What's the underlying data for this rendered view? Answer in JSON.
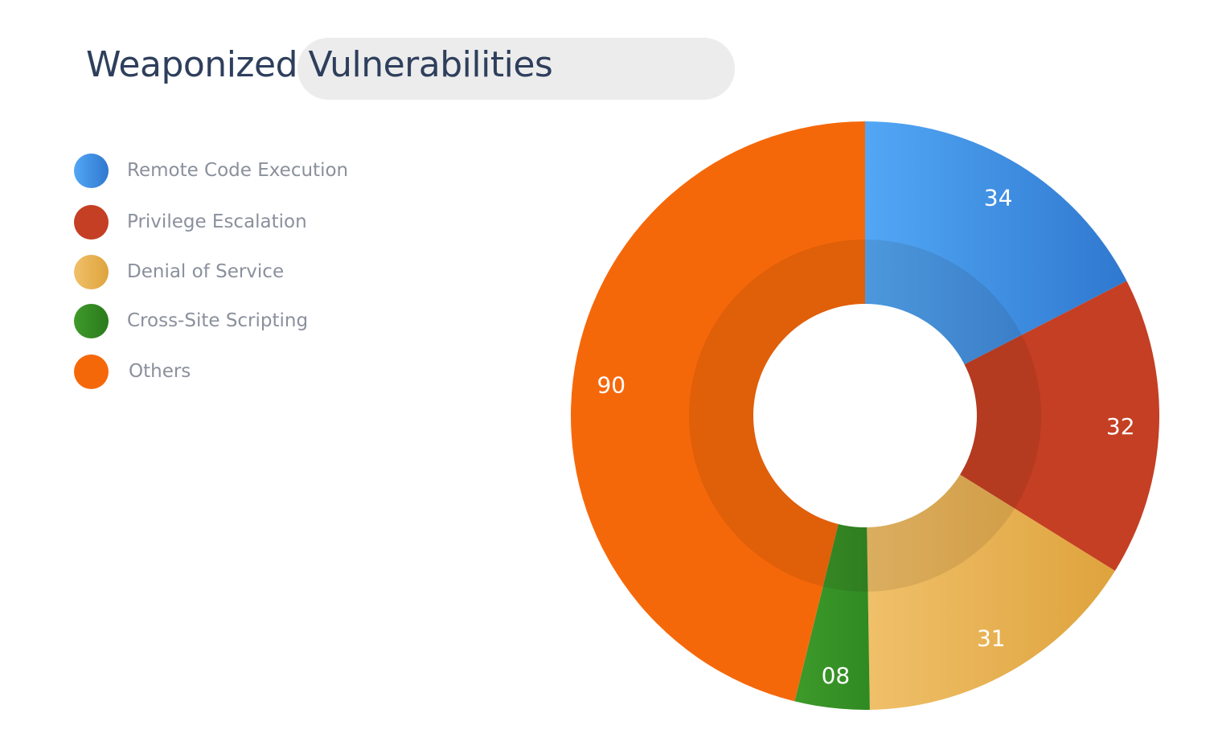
{
  "title": "Weaponized Vulnerabilities",
  "chart_data": {
    "type": "pie",
    "title": "Weaponized Vulnerabilities",
    "categories": [
      "Remote Code Execution",
      "Privilege Escalation",
      "Denial of Service",
      "Cross-Site Scripting",
      "Others"
    ],
    "values": [
      34,
      32,
      31,
      8,
      90
    ],
    "data_labels": [
      "34",
      "32",
      "31",
      "08",
      "90"
    ],
    "colors": [
      "#3a86d8",
      "#c43f23",
      "#e6b055",
      "#358a24",
      "#f5680a"
    ],
    "legend_position": "top-left",
    "donut": true
  },
  "legend": [
    {
      "label": "Remote Code Execution",
      "color": "#3a86d8",
      "icon": "blue-circle-icon"
    },
    {
      "label": "Privilege Escalation",
      "color": "#c43f23",
      "icon": "red-circle-icon"
    },
    {
      "label": "Denial of Service",
      "color": "#e6b055",
      "icon": "gold-circle-icon"
    },
    {
      "label": "Cross-Site Scripting",
      "color": "#358a24",
      "icon": "green-circle-icon"
    },
    {
      "label": "Others",
      "color": "#f5680a",
      "icon": "orange-circle-icon"
    }
  ]
}
